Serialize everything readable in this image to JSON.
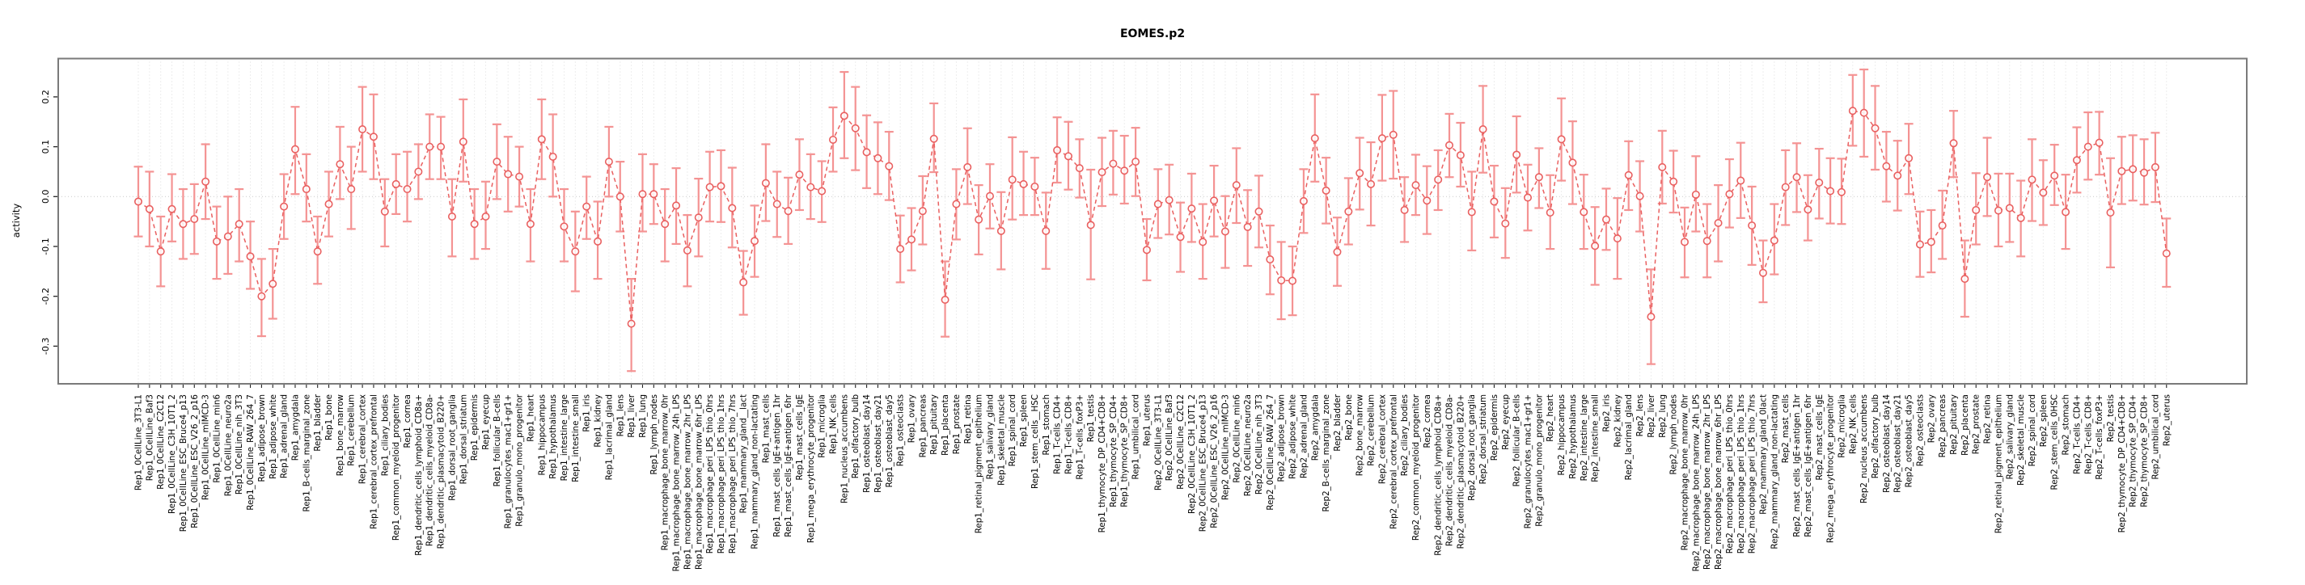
{
  "page": {
    "background": "#ffffff"
  },
  "colors": {
    "error_bar": "#f49393",
    "marker_line": "#e96060",
    "grid": "#dcdcdc",
    "zero_line": "#c9c9c9",
    "plot_border": "#7a7a7a",
    "tick": "#222222",
    "text": "#000000"
  },
  "chart_data": {
    "type": "line",
    "title": "EOMES.p2",
    "xlabel": "",
    "ylabel": "activity",
    "ylim": [
      -0.375,
      0.277
    ],
    "y_ticks": [
      0.2,
      0.1,
      0.0,
      -0.1,
      -0.2,
      -0.3
    ],
    "y_tick_labels": [
      "0.2",
      "0.1",
      "0.0",
      "-0.1",
      "-0.2",
      "-0.3"
    ],
    "grid": "vertical dotted gridline at every category; dotted horizontal line at 0",
    "legend": "none",
    "marker": "open-circle",
    "error_bars": true,
    "categories": [
      "Rep1_0CellLine_3T3-L1",
      "Rep1_0CellLine_Baf3",
      "Rep1_0CellLine_C2C12",
      "Rep1_0CellLine_C3H_10T1_2",
      "Rep1_0CellLine_ESC_Bruce4_p13",
      "Rep1_0CellLine_ESC_V26_2_p16",
      "Rep1_0CellLine_mIMCD-3",
      "Rep1_0CellLine_min6",
      "Rep1_0CellLine_neuro2a",
      "Rep1_0CellLine_nih_3T3",
      "Rep1_0CellLine_RAW_264_7",
      "Rep1_adipose_brown",
      "Rep1_adipose_white",
      "Rep1_adrenal_gland",
      "Rep1_amygdala",
      "Rep1_B-cells_marginal_zone",
      "Rep1_bladder",
      "Rep1_bone",
      "Rep1_bone_marrow",
      "Rep1_cerebellum",
      "Rep1_cerebral_cortex",
      "Rep1_cerebral_cortex_prefrontal",
      "Rep1_ciliary_bodies",
      "Rep1_common_myeloid_progenitor",
      "Rep1_cornea",
      "Rep1_dendritic_cells_lymphoid_CD8a+",
      "Rep1_dendritic_cells_myeloid_CD8a-",
      "Rep1_dendritic_plasmacytoid_B220+",
      "Rep1_dorsal_root_ganglia",
      "Rep1_dorsal_striatum",
      "Rep1_epidermis",
      "Rep1_eyecup",
      "Rep1_follicular_B-cells",
      "Rep1_granulocytes_mac1+gr1+",
      "Rep1_granulo_mono_progenitor",
      "Rep1_heart",
      "Rep1_hippocampus",
      "Rep1_hypothalamus",
      "Rep1_intestine_large",
      "Rep1_intestine_small",
      "Rep1_iris",
      "Rep1_kidney",
      "Rep1_lacrimal_gland",
      "Rep1_lens",
      "Rep1_liver",
      "Rep1_lung",
      "Rep1_lymph_nodes",
      "Rep1_macrophage_bone_marrow_0hr",
      "Rep1_macrophage_bone_marrow_24h_LPS",
      "Rep1_macrophage_bone_marrow_2hr_LPS",
      "Rep1_macrophage_bone_marrow_6hr_LPS",
      "Rep1_macrophage_peri_LPS_thio_0hrs",
      "Rep1_macrophage_peri_LPS_thio_1hrs",
      "Rep1_macrophage_peri_LPS_thio_7hrs",
      "Rep1_mammary_gland__lact",
      "Rep1_mammary_gland_non-lactating",
      "Rep1_mast_cells",
      "Rep1_mast_cells_IgE+antigen_1hr",
      "Rep1_mast_cells_IgE+antigen_6hr",
      "Rep1_mast_cells_IgE",
      "Rep1_mega_erythrocyte_progenitor",
      "Rep1_microglia",
      "Rep1_NK_cells",
      "Rep1_nucleus_accumbens",
      "Rep1_olfactory_bulb",
      "Rep1_osteoblast_day14",
      "Rep1_osteoblast_day21",
      "Rep1_osteoblast_day5",
      "Rep1_osteoclasts",
      "Rep1_ovary",
      "Rep1_pancreas",
      "Rep1_pituitary",
      "Rep1_placenta",
      "Rep1_prostate",
      "Rep1_retina",
      "Rep1_retinal_pigment_epithelium",
      "Rep1_salivary_gland",
      "Rep1_skeletal_muscle",
      "Rep1_spinal_cord",
      "Rep1_spleen",
      "Rep1_stem_cells__HSC",
      "Rep1_stomach",
      "Rep1_T-cells_CD4+",
      "Rep1_T-cells_CD8+",
      "Rep1_T-cells_foxP3+",
      "Rep1_testis",
      "Rep1_thymocyte_DP_CD4+CD8+",
      "Rep1_thymocyte_SP_CD4+",
      "Rep1_thymocyte_SP_CD8+",
      "Rep1_umbilical_cord",
      "Rep1_uterus",
      "Rep2_0CellLine_3T3-L1",
      "Rep2_0CellLine_Baf3",
      "Rep2_0CellLine_C2C12",
      "Rep2_0CellLine_C3H_10T1_2",
      "Rep2_0CellLine_ESC_Bruce4_p13",
      "Rep2_0CellLine_ESC_V26_2_p16",
      "Rep2_0CellLine_mIMCD-3",
      "Rep2_0CellLine_min6",
      "Rep2_0CellLine_neuro2a",
      "Rep2_0CellLine_nih_3T3",
      "Rep2_0CellLine_RAW_264_7",
      "Rep2_adipose_brown",
      "Rep2_adipose_white",
      "Rep2_adrenal_gland",
      "Rep2_amygdala",
      "Rep2_B-cells_marginal_zone",
      "Rep2_bladder",
      "Rep2_bone",
      "Rep2_bone_marrow",
      "Rep2_cerebellum",
      "Rep2_cerebral_cortex",
      "Rep2_cerebral_cortex_prefrontal",
      "Rep2_ciliary_bodies",
      "Rep2_common_myeloid_progenitor",
      "Rep2_cornea",
      "Rep2_dendritic_cells_lymphoid_CD8a+",
      "Rep2_dendritic_cells_myeloid_CD8a-",
      "Rep2_dendritic_plasmacytoid_B220+",
      "Rep2_dorsal_root_ganglia",
      "Rep2_dorsal_striatum",
      "Rep2_epidermis",
      "Rep2_eyecup",
      "Rep2_follicular_B-cells",
      "Rep2_granulocytes_mac1+gr1+",
      "Rep2_granulo_mono_progenitor",
      "Rep2_heart",
      "Rep2_hippocampus",
      "Rep2_hypothalamus",
      "Rep2_intestine_large",
      "Rep2_intestine_small",
      "Rep2_iris",
      "Rep2_kidney",
      "Rep2_lacrimal_gland",
      "Rep2_lens",
      "Rep2_liver",
      "Rep2_lung",
      "Rep2_lymph_nodes",
      "Rep2_macrophage_bone_marrow_0hr",
      "Rep2_macrophage_bone_marrow_24h_LPS",
      "Rep2_macrophage_bone_marrow_2hr_LPS",
      "Rep2_macrophage_bone_marrow_6hr_LPS",
      "Rep2_macrophage_peri_LPS_thio_0hrs",
      "Rep2_macrophage_peri_LPS_thio_1hrs",
      "Rep2_macrophage_peri_LPS_thio_7hrs",
      "Rep2_mammary_gland_0lact",
      "Rep2_mammary_gland_non-lactating",
      "Rep2_mast_cells",
      "Rep2_mast_cells_IgE+antigen_1hr",
      "Rep2_mast_cells_IgE+antigen_6hr",
      "Rep2_mast_cells_IgE",
      "Rep2_mega_erythrocyte_progenitor",
      "Rep2_microglia",
      "Rep2_NK_cells",
      "Rep2_nucleus_accumbens",
      "Rep2_olfactory_bulb",
      "Rep2_osteoblast_day14",
      "Rep2_osteoblast_day21",
      "Rep2_osteoblast_day5",
      "Rep2_osteoclasts",
      "Rep2_ovary",
      "Rep2_pancreas",
      "Rep2_pituitary",
      "Rep2_placenta",
      "Rep2_prostate",
      "Rep2_retina",
      "Rep2_retinal_pigment_epithelium",
      "Rep2_salivary_gland",
      "Rep2_skeletal_muscle",
      "Rep2_spinal_cord",
      "Rep2_spleen",
      "Rep2_stem_cells_0HSC",
      "Rep2_stomach",
      "Rep2_T-cells_CD4+",
      "Rep2_T-cells_CD8+",
      "Rep2_T-cells_foxP3+",
      "Rep2_testis",
      "Rep2_thymocyte_DP_CD4+CD8+",
      "Rep2_thymocyte_SP_CD4+",
      "Rep2_thymocyte_SP_CD8+",
      "Rep2_umbilical_cord",
      "Rep2_uterus"
    ],
    "series": [
      {
        "name": "activity",
        "values": [
          -0.01,
          -0.025,
          -0.11,
          -0.025,
          -0.055,
          -0.045,
          0.03,
          -0.09,
          -0.08,
          -0.055,
          -0.12,
          -0.2,
          -0.175,
          -0.02,
          0.095,
          0.015,
          -0.11,
          -0.015,
          0.065,
          0.015,
          0.135,
          0.12,
          -0.03,
          0.025,
          0.015,
          0.05,
          0.1,
          0.1,
          -0.04,
          0.11,
          -0.055,
          -0.04,
          0.07,
          0.045,
          0.04,
          -0.055,
          0.115,
          0.08,
          -0.06,
          -0.11,
          -0.02,
          -0.09,
          0.07,
          0.0,
          -0.255,
          0.005,
          0.005,
          -0.055,
          -0.018,
          -0.108,
          -0.042,
          0.019,
          0.021,
          -0.023,
          -0.172,
          -0.089,
          0.027,
          -0.015,
          -0.029,
          0.044,
          0.019,
          0.011,
          0.114,
          0.162,
          0.137,
          0.089,
          0.077,
          0.061,
          -0.105,
          -0.086,
          -0.029,
          0.116,
          -0.207,
          -0.015,
          0.059,
          -0.046,
          0.001,
          -0.069,
          0.034,
          0.025,
          0.02,
          -0.069,
          0.093,
          0.081,
          0.057,
          -0.057,
          0.049,
          0.066,
          0.052,
          0.07,
          -0.107,
          -0.015,
          -0.007,
          -0.081,
          -0.024,
          -0.091,
          -0.008,
          -0.07,
          0.023,
          -0.061,
          -0.03,
          -0.126,
          -0.168,
          -0.169,
          -0.009,
          0.117,
          0.012,
          -0.111,
          -0.03,
          0.047,
          0.025,
          0.117,
          0.124,
          -0.027,
          0.023,
          -0.008,
          0.034,
          0.103,
          0.083,
          -0.031,
          0.135,
          -0.01,
          -0.054,
          0.084,
          -0.002,
          0.039,
          -0.032,
          0.115,
          0.068,
          -0.031,
          -0.099,
          -0.046,
          -0.084,
          0.043,
          0.001,
          -0.241,
          0.059,
          0.03,
          -0.091,
          0.004,
          -0.089,
          -0.053,
          0.005,
          0.032,
          -0.058,
          -0.153,
          -0.088,
          0.019,
          0.039,
          -0.026,
          0.028,
          0.011,
          0.009,
          0.172,
          0.168,
          0.137,
          0.061,
          0.042,
          0.077,
          -0.096,
          -0.091,
          -0.058,
          0.107,
          -0.165,
          -0.027,
          0.039,
          -0.028,
          -0.023,
          -0.043,
          0.034,
          0.008,
          0.042,
          -0.031,
          0.073,
          0.1,
          0.108,
          -0.032,
          0.051,
          0.055,
          0.048,
          0.059,
          -0.114
        ]
      },
      {
        "name": "ci_low",
        "values": [
          -0.08,
          -0.1,
          -0.18,
          -0.09,
          -0.125,
          -0.115,
          -0.045,
          -0.165,
          -0.155,
          -0.13,
          -0.185,
          -0.28,
          -0.245,
          -0.085,
          0.005,
          -0.05,
          -0.175,
          -0.08,
          -0.005,
          -0.065,
          0.05,
          0.035,
          -0.1,
          -0.035,
          -0.05,
          -0.005,
          0.035,
          0.035,
          -0.12,
          0.03,
          -0.125,
          -0.105,
          -0.005,
          -0.03,
          -0.02,
          -0.13,
          0.035,
          0.0,
          -0.13,
          -0.19,
          -0.085,
          -0.165,
          0.0,
          -0.07,
          -0.35,
          -0.07,
          -0.055,
          -0.13,
          -0.095,
          -0.18,
          -0.12,
          -0.05,
          -0.051,
          -0.102,
          -0.237,
          -0.161,
          -0.049,
          -0.081,
          -0.095,
          -0.027,
          -0.045,
          -0.051,
          0.05,
          0.077,
          0.053,
          0.017,
          0.005,
          -0.007,
          -0.172,
          -0.148,
          -0.096,
          0.049,
          -0.281,
          -0.086,
          -0.015,
          -0.116,
          -0.064,
          -0.146,
          -0.046,
          -0.037,
          -0.037,
          -0.145,
          0.028,
          0.014,
          -0.002,
          -0.166,
          -0.019,
          0.004,
          -0.014,
          0.001,
          -0.168,
          -0.083,
          -0.076,
          -0.151,
          -0.091,
          -0.165,
          -0.08,
          -0.143,
          -0.053,
          -0.139,
          -0.102,
          -0.196,
          -0.246,
          -0.238,
          -0.073,
          0.03,
          -0.054,
          -0.179,
          -0.096,
          -0.026,
          -0.058,
          0.032,
          0.036,
          -0.091,
          -0.037,
          -0.075,
          -0.027,
          0.039,
          0.02,
          -0.108,
          0.048,
          -0.082,
          -0.123,
          0.008,
          -0.068,
          -0.023,
          -0.105,
          0.032,
          -0.015,
          -0.105,
          -0.177,
          -0.107,
          -0.165,
          -0.027,
          -0.07,
          -0.336,
          -0.014,
          -0.032,
          -0.162,
          -0.07,
          -0.162,
          -0.13,
          -0.062,
          -0.043,
          -0.137,
          -0.212,
          -0.156,
          -0.057,
          -0.031,
          -0.088,
          -0.044,
          -0.054,
          -0.055,
          0.102,
          0.08,
          0.054,
          -0.01,
          -0.028,
          0.005,
          -0.161,
          -0.152,
          -0.125,
          0.039,
          -0.241,
          -0.096,
          -0.039,
          -0.1,
          -0.091,
          -0.12,
          -0.049,
          -0.057,
          -0.017,
          -0.105,
          0.008,
          0.034,
          0.044,
          -0.142,
          -0.015,
          -0.008,
          -0.016,
          -0.011,
          -0.181
        ]
      },
      {
        "name": "ci_high",
        "values": [
          0.06,
          0.05,
          -0.04,
          0.045,
          0.015,
          0.025,
          0.105,
          -0.02,
          0.0,
          0.015,
          -0.05,
          -0.125,
          -0.105,
          0.045,
          0.18,
          0.085,
          -0.04,
          0.05,
          0.14,
          0.1,
          0.22,
          0.205,
          0.035,
          0.085,
          0.09,
          0.105,
          0.165,
          0.16,
          0.035,
          0.195,
          0.015,
          0.03,
          0.145,
          0.12,
          0.1,
          0.015,
          0.195,
          0.165,
          0.015,
          -0.03,
          0.04,
          -0.01,
          0.14,
          0.07,
          -0.165,
          0.085,
          0.065,
          0.015,
          0.057,
          -0.037,
          0.036,
          0.09,
          0.093,
          0.058,
          -0.109,
          -0.018,
          0.105,
          0.05,
          0.038,
          0.115,
          0.085,
          0.071,
          0.179,
          0.25,
          0.22,
          0.163,
          0.149,
          0.13,
          -0.038,
          -0.023,
          0.041,
          0.187,
          -0.13,
          0.055,
          0.137,
          0.023,
          0.065,
          0.009,
          0.119,
          0.09,
          0.078,
          0.008,
          0.159,
          0.15,
          0.115,
          0.054,
          0.118,
          0.132,
          0.122,
          0.138,
          -0.045,
          0.055,
          0.064,
          -0.012,
          0.046,
          -0.015,
          0.062,
          0.001,
          0.097,
          0.013,
          0.042,
          -0.058,
          -0.091,
          -0.1,
          0.055,
          0.205,
          0.078,
          -0.042,
          0.037,
          0.118,
          0.109,
          0.204,
          0.212,
          0.039,
          0.084,
          0.061,
          0.093,
          0.166,
          0.148,
          0.05,
          0.222,
          0.062,
          0.017,
          0.161,
          0.064,
          0.097,
          0.043,
          0.197,
          0.151,
          0.044,
          -0.021,
          0.016,
          -0.003,
          0.111,
          0.071,
          -0.146,
          0.132,
          0.092,
          -0.022,
          0.081,
          -0.015,
          0.023,
          0.075,
          0.108,
          0.02,
          -0.088,
          -0.015,
          0.093,
          0.107,
          0.043,
          0.096,
          0.077,
          0.076,
          0.244,
          0.255,
          0.222,
          0.13,
          0.112,
          0.146,
          -0.03,
          -0.027,
          0.012,
          0.172,
          -0.088,
          0.047,
          0.118,
          0.046,
          0.046,
          0.032,
          0.115,
          0.073,
          0.104,
          0.044,
          0.139,
          0.169,
          0.17,
          0.077,
          0.12,
          0.123,
          0.115,
          0.128,
          -0.044
        ]
      }
    ]
  }
}
